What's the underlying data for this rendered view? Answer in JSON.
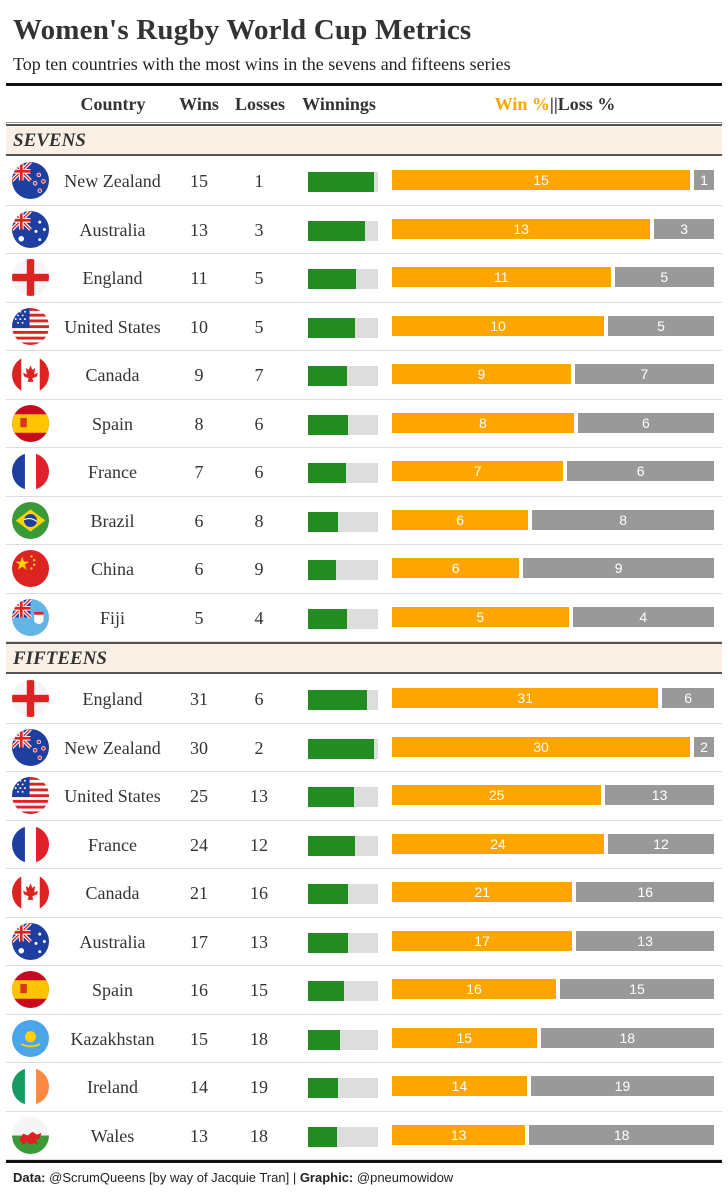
{
  "title": "Women's Rugby World Cup Metrics",
  "subtitle": "Top ten countries with the most wins in the sevens and fifteens series",
  "headers": {
    "country": "Country",
    "wins": "Wins",
    "losses": "Losses",
    "winnings": "Winnings",
    "win_pct": "Win %",
    "sep": "||",
    "loss_pct": "Loss %"
  },
  "colors": {
    "win_bar": "#ffa500",
    "loss_bar": "#999999",
    "winnings_bar": "#228b22",
    "winnings_bg": "#dddddd",
    "section_bg": "#faf0e6"
  },
  "caption": {
    "data_label": "Data:",
    "data_text": " @ScrumQueens [by way of Jacquie Tran] | ",
    "graphic_label": "Graphic:",
    "graphic_text": " @pneumowidow"
  },
  "chart_data": {
    "type": "table",
    "sections": [
      {
        "name": "SEVENS",
        "rows": [
          {
            "country": "New Zealand",
            "flag": "new-zealand-flag",
            "wins": 15,
            "losses": 1
          },
          {
            "country": "Australia",
            "flag": "australia-flag",
            "wins": 13,
            "losses": 3
          },
          {
            "country": "England",
            "flag": "england-flag",
            "wins": 11,
            "losses": 5
          },
          {
            "country": "United States",
            "flag": "united-states-flag",
            "wins": 10,
            "losses": 5
          },
          {
            "country": "Canada",
            "flag": "canada-flag",
            "wins": 9,
            "losses": 7
          },
          {
            "country": "Spain",
            "flag": "spain-flag",
            "wins": 8,
            "losses": 6
          },
          {
            "country": "France",
            "flag": "france-flag",
            "wins": 7,
            "losses": 6
          },
          {
            "country": "Brazil",
            "flag": "brazil-flag",
            "wins": 6,
            "losses": 8
          },
          {
            "country": "China",
            "flag": "china-flag",
            "wins": 6,
            "losses": 9
          },
          {
            "country": "Fiji",
            "flag": "fiji-flag",
            "wins": 5,
            "losses": 4
          }
        ]
      },
      {
        "name": "FIFTEENS",
        "rows": [
          {
            "country": "England",
            "flag": "england-flag",
            "wins": 31,
            "losses": 6
          },
          {
            "country": "New Zealand",
            "flag": "new-zealand-flag",
            "wins": 30,
            "losses": 2
          },
          {
            "country": "United States",
            "flag": "united-states-flag",
            "wins": 25,
            "losses": 13
          },
          {
            "country": "France",
            "flag": "france-flag",
            "wins": 24,
            "losses": 12
          },
          {
            "country": "Canada",
            "flag": "canada-flag",
            "wins": 21,
            "losses": 16
          },
          {
            "country": "Australia",
            "flag": "australia-flag",
            "wins": 17,
            "losses": 13
          },
          {
            "country": "Spain",
            "flag": "spain-flag",
            "wins": 16,
            "losses": 15
          },
          {
            "country": "Kazakhstan",
            "flag": "kazakhstan-flag",
            "wins": 15,
            "losses": 18
          },
          {
            "country": "Ireland",
            "flag": "ireland-flag",
            "wins": 14,
            "losses": 19
          },
          {
            "country": "Wales",
            "flag": "wales-flag",
            "wins": 13,
            "losses": 18
          }
        ]
      }
    ]
  }
}
